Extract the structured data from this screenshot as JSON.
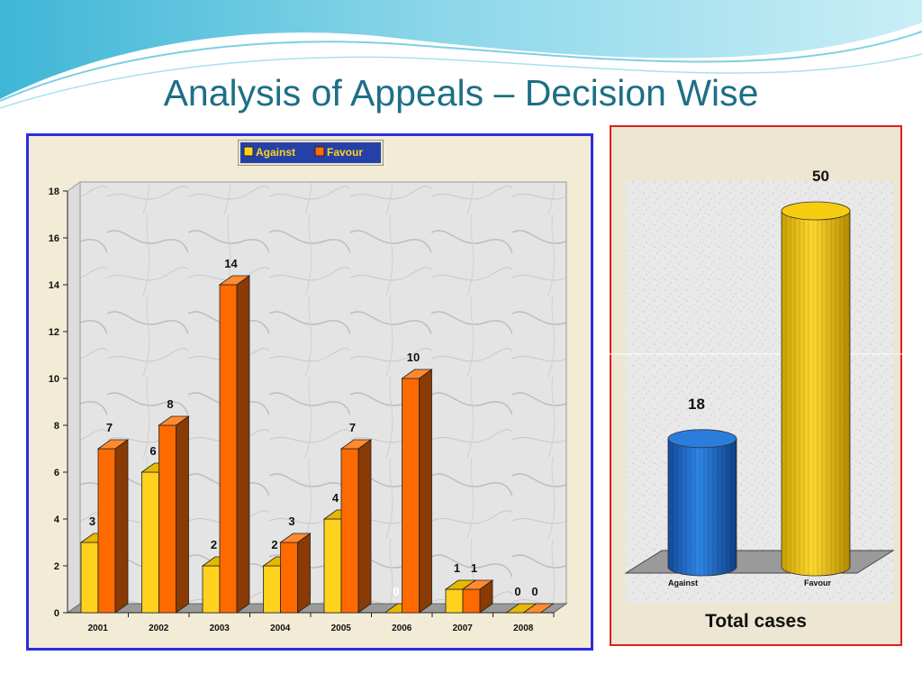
{
  "slide": {
    "title": "Analysis of Appeals – Decision Wise"
  },
  "colors": {
    "against": "#ffd21e",
    "against_side": "#a0820a",
    "favour": "#ff6a00",
    "favour_side": "#8a3a05",
    "total_against": "#1f6fd1",
    "total_favour": "#f2c40a",
    "left_border": "#2c2ce0",
    "right_border": "#e02020",
    "title": "#1d6f86"
  },
  "chart_data": [
    {
      "type": "bar",
      "title": "",
      "categories": [
        "2001",
        "2002",
        "2003",
        "2004",
        "2005",
        "2006",
        "2007",
        "2008"
      ],
      "series": [
        {
          "name": "Against",
          "values": [
            3,
            6,
            2,
            2,
            4,
            0,
            1,
            0
          ]
        },
        {
          "name": "Favour",
          "values": [
            7,
            8,
            14,
            3,
            7,
            10,
            1,
            0
          ]
        }
      ],
      "y_ticks": [
        "0",
        "2",
        "4",
        "6",
        "8",
        "10",
        "12",
        "14",
        "16",
        "18"
      ],
      "ylim": [
        0,
        18
      ],
      "legend_position": "top-center",
      "grid": false,
      "style": "3d"
    },
    {
      "type": "bar",
      "title": "Total cases",
      "categories": [
        "Against",
        "Favour"
      ],
      "values": [
        18,
        50
      ],
      "ylim": [
        0,
        50
      ],
      "style": "3d-cylinder"
    }
  ]
}
